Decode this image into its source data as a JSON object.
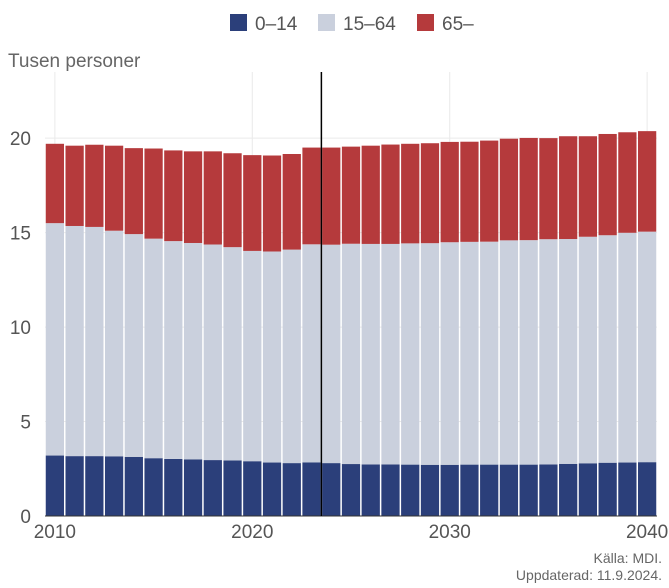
{
  "chart_data": {
    "type": "bar",
    "stacked": true,
    "ylabel": "Tusen personer",
    "ylim": [
      0,
      23.5
    ],
    "yticks": [
      0,
      5,
      10,
      15,
      20
    ],
    "xticks": [
      2010,
      2020,
      2030,
      2040
    ],
    "grid": true,
    "legend": "top-center",
    "vertical_line_after": 2023,
    "x": [
      2010,
      2011,
      2012,
      2013,
      2014,
      2015,
      2016,
      2017,
      2018,
      2019,
      2020,
      2021,
      2022,
      2023,
      2024,
      2025,
      2026,
      2027,
      2028,
      2029,
      2030,
      2031,
      2032,
      2033,
      2034,
      2035,
      2036,
      2037,
      2038,
      2039,
      2040
    ],
    "series": [
      {
        "name": "0–14",
        "color": "#2b3f7a",
        "values": [
          3.2,
          3.17,
          3.17,
          3.16,
          3.13,
          3.06,
          3.02,
          3.0,
          2.96,
          2.94,
          2.9,
          2.83,
          2.8,
          2.84,
          2.8,
          2.75,
          2.73,
          2.73,
          2.72,
          2.71,
          2.71,
          2.72,
          2.72,
          2.72,
          2.72,
          2.73,
          2.76,
          2.79,
          2.82,
          2.83,
          2.85
        ]
      },
      {
        "name": "15–64",
        "color": "#cad0dd",
        "values": [
          12.3,
          12.18,
          12.13,
          11.94,
          11.79,
          11.62,
          11.53,
          11.45,
          11.41,
          11.29,
          11.13,
          11.17,
          11.3,
          11.54,
          11.56,
          11.66,
          11.67,
          11.67,
          11.71,
          11.73,
          11.78,
          11.79,
          11.8,
          11.87,
          11.88,
          11.92,
          11.9,
          11.99,
          12.04,
          12.16,
          12.2
        ]
      },
      {
        "name": "65–",
        "color": "#b53a3c",
        "values": [
          4.2,
          4.25,
          4.35,
          4.5,
          4.55,
          4.77,
          4.8,
          4.85,
          4.93,
          4.97,
          5.07,
          5.08,
          5.06,
          5.12,
          5.14,
          5.14,
          5.2,
          5.26,
          5.27,
          5.29,
          5.31,
          5.3,
          5.35,
          5.38,
          5.41,
          5.35,
          5.44,
          5.32,
          5.36,
          5.32,
          5.32
        ]
      }
    ],
    "source": "Källa: MDI.",
    "updated": "Uppdaterad: 11.9.2024."
  },
  "colors": {
    "grid": "#eaeaea",
    "axis_text": "#555555",
    "vline": "#000000"
  }
}
